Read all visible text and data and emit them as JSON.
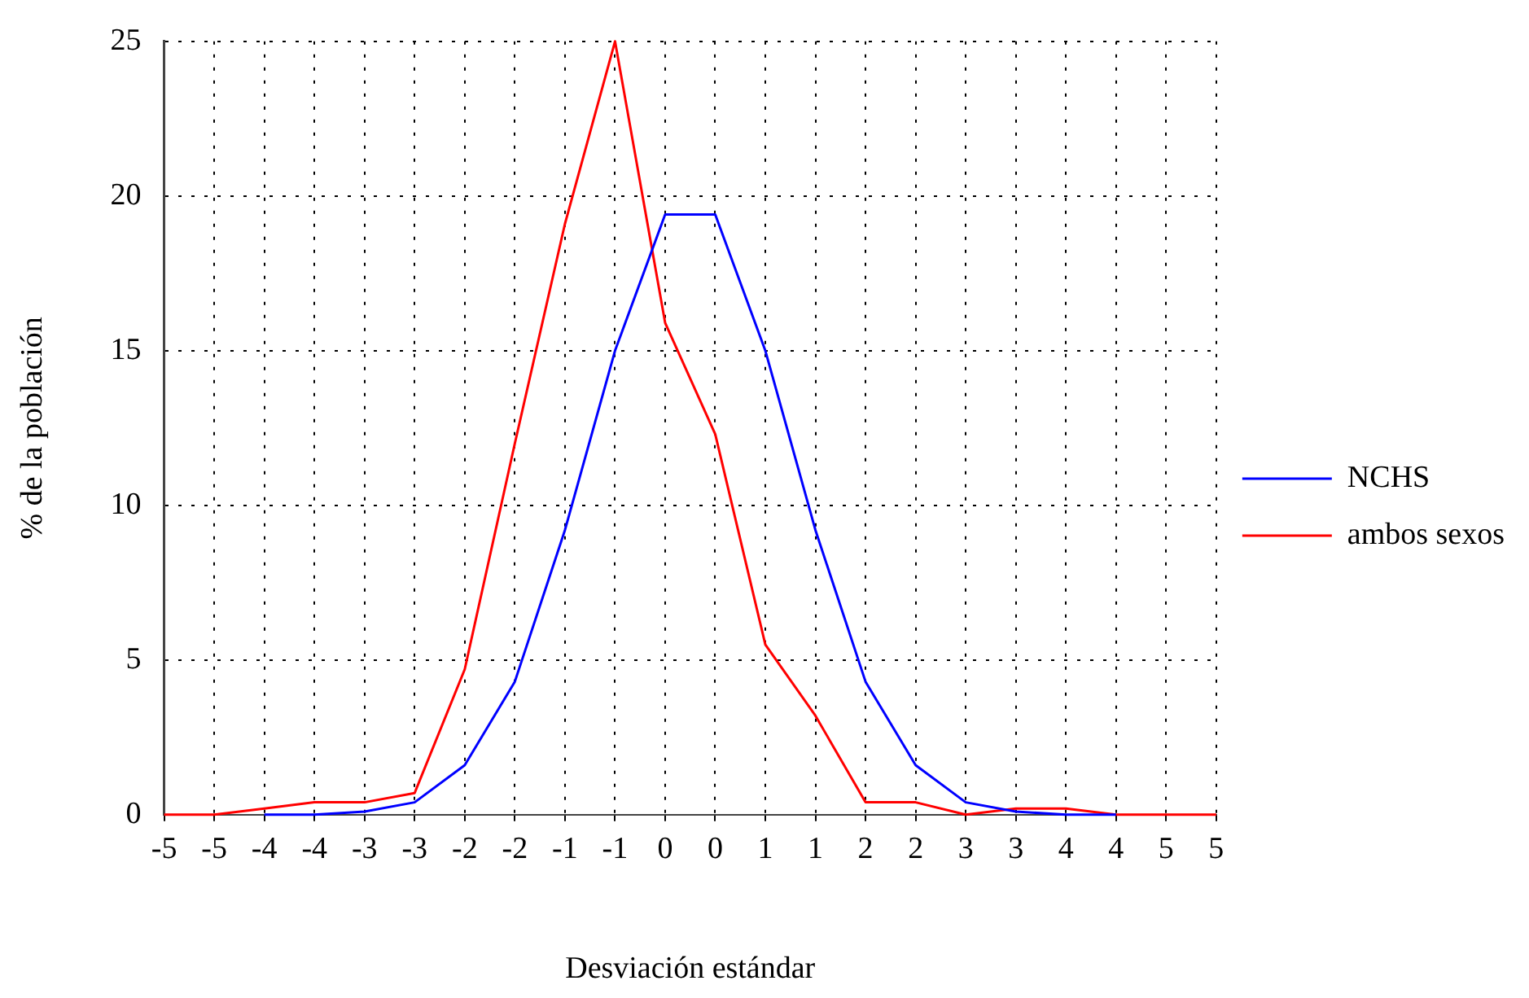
{
  "chart_data": {
    "type": "line",
    "xlabel": "Desviación estándar",
    "ylabel": "% de la población",
    "categories": [
      "-5",
      "-5",
      "-4",
      "-4",
      "-3",
      "-3",
      "-2",
      "-2",
      "-1",
      "-1",
      "0",
      "0",
      "1",
      "1",
      "2",
      "2",
      "3",
      "3",
      "4",
      "4",
      "5",
      "5"
    ],
    "series": [
      {
        "name": "NCHS",
        "color": "#0000ff",
        "values": [
          null,
          null,
          0,
          0,
          0.1,
          0.4,
          1.6,
          4.3,
          9.2,
          15.0,
          19.4,
          19.4,
          15.0,
          9.2,
          4.3,
          1.6,
          0.4,
          0.1,
          0,
          0,
          null,
          null
        ]
      },
      {
        "name": "ambos sexos",
        "color": "#ff0000",
        "values": [
          0,
          0,
          0.2,
          0.4,
          0.4,
          0.7,
          4.7,
          12.0,
          19.1,
          25,
          15.9,
          12.3,
          5.5,
          3.2,
          0.4,
          0.4,
          0,
          0.2,
          0.2,
          0,
          0,
          0
        ]
      }
    ],
    "ylim": [
      0,
      25
    ],
    "yticks": [
      0,
      5,
      10,
      15,
      20,
      25
    ],
    "grid": true,
    "legend": "right",
    "marker": "none",
    "line_style": "solid"
  }
}
